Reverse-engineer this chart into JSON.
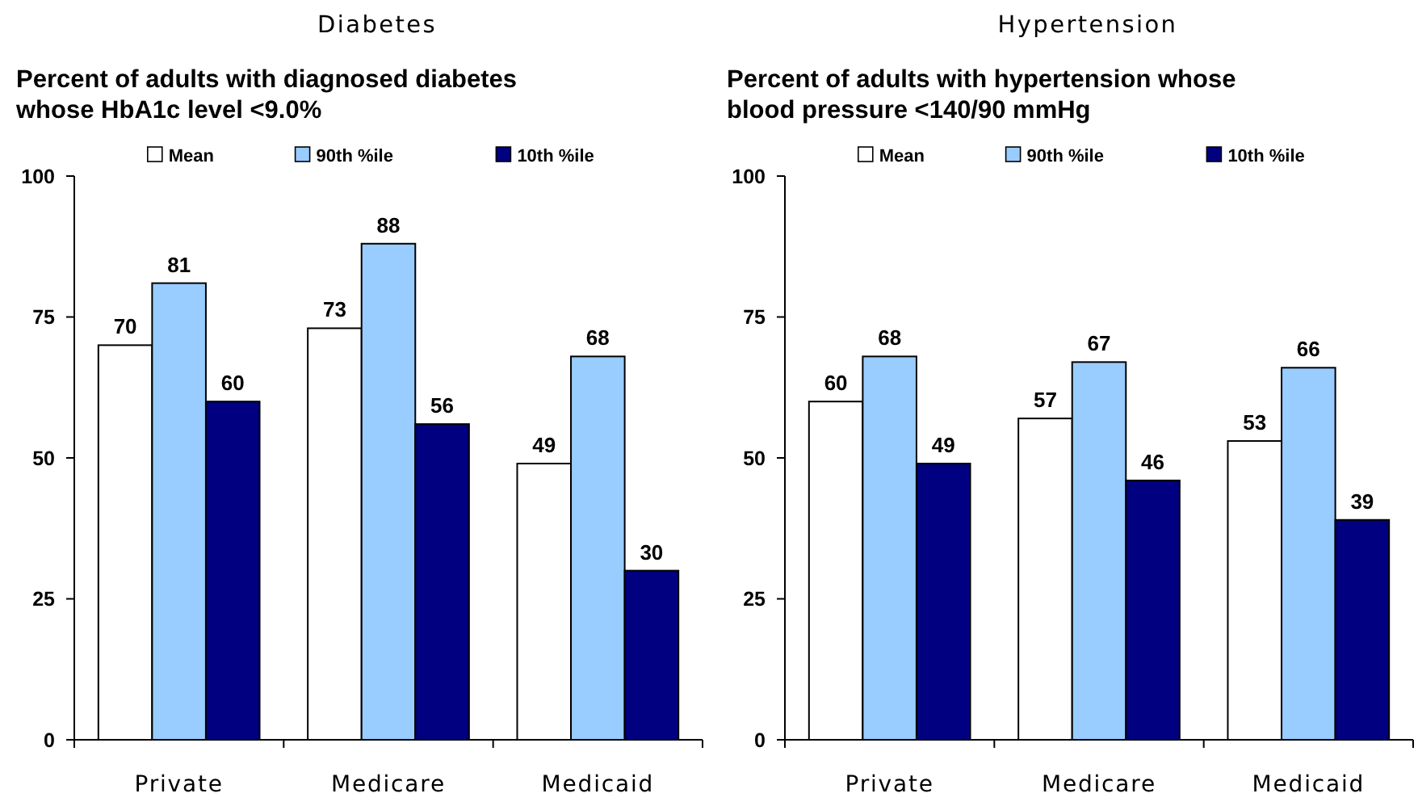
{
  "chart_data": [
    {
      "type": "bar",
      "title": "Diabetes",
      "subtitle": "Percent of adults with diagnosed diabetes whose HbA1c level <9.0%",
      "categories": [
        "Private",
        "Medicare",
        "Medicaid"
      ],
      "series": [
        {
          "name": "Mean",
          "color": "#ffffff",
          "values": [
            70,
            73,
            49
          ]
        },
        {
          "name": "90th %ile",
          "color": "#99ccff",
          "values": [
            81,
            88,
            68
          ]
        },
        {
          "name": "10th %ile",
          "color": "#000080",
          "values": [
            60,
            56,
            30
          ]
        }
      ],
      "ylim": [
        0,
        100
      ],
      "yticks": [
        0,
        25,
        50,
        75,
        100
      ],
      "data_labels": true,
      "legend": "top"
    },
    {
      "type": "bar",
      "title": "Hypertension",
      "subtitle": "Percent of adults with hypertension whose blood pressure <140/90 mmHg",
      "categories": [
        "Private",
        "Medicare",
        "Medicaid"
      ],
      "series": [
        {
          "name": "Mean",
          "color": "#ffffff",
          "values": [
            60,
            57,
            53
          ]
        },
        {
          "name": "90th %ile",
          "color": "#99ccff",
          "values": [
            68,
            67,
            66
          ]
        },
        {
          "name": "10th %ile",
          "color": "#000080",
          "values": [
            49,
            46,
            39
          ]
        }
      ],
      "ylim": [
        0,
        100
      ],
      "yticks": [
        0,
        25,
        50,
        75,
        100
      ],
      "data_labels": true,
      "legend": "top"
    }
  ]
}
